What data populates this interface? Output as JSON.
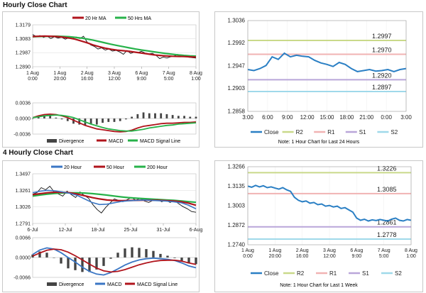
{
  "hourly": {
    "title": "Hourly Close Chart",
    "left_chart": {
      "type": "line",
      "legend": [
        "20 Hr MA",
        "50 Hrs MA"
      ],
      "yticks": [
        "1.3179",
        "1.3083",
        "1.2987",
        "1.2890"
      ],
      "ylim": [
        1.289,
        1.3179
      ],
      "xticks": [
        [
          "1 Aug",
          "0:00"
        ],
        [
          "1 Aug",
          "20:00"
        ],
        [
          "2 Aug",
          "16:00"
        ],
        [
          "3 Aug",
          "12:00"
        ],
        [
          "6 Aug",
          "9:00"
        ],
        [
          "7 Aug",
          "5:00"
        ],
        [
          "8 Aug",
          "1:00"
        ]
      ],
      "price": [
        1.3112,
        1.3098,
        1.3105,
        1.3092,
        1.31,
        1.3085,
        1.3096,
        1.3088,
        1.3093,
        1.308,
        1.309,
        1.3086,
        1.3095,
        1.3084,
        1.31,
        1.306,
        1.304,
        1.303,
        1.3012,
        1.302,
        1.3005,
        1.3012,
        1.2998,
        1.3002,
        1.2992,
        1.2975,
        1.3002,
        1.2982,
        1.299,
        1.2988,
        1.2996,
        1.2984,
        1.2978,
        1.2982,
        1.2968,
        1.2946,
        1.2956,
        1.295,
        1.2958,
        1.2964,
        1.2975,
        1.2962,
        1.296,
        1.2955,
        1.2952,
        1.295
      ],
      "ma20": [
        1.3098,
        1.31,
        1.3101,
        1.31,
        1.3098,
        1.3094,
        1.3088,
        1.308,
        1.3068,
        1.3055,
        1.304,
        1.3028,
        1.3018,
        1.301,
        1.3004,
        1.3,
        1.2996,
        1.299,
        1.2984,
        1.2978,
        1.2972,
        1.2968,
        1.2964,
        1.2962,
        1.2961,
        1.296,
        1.2958,
        1.2956
      ],
      "ma50": [
        1.3096,
        1.3098,
        1.3099,
        1.31,
        1.31,
        1.3099,
        1.3097,
        1.3093,
        1.3088,
        1.3081,
        1.3073,
        1.3064,
        1.3054,
        1.3045,
        1.3036,
        1.3028,
        1.302,
        1.3012,
        1.3005,
        1.2999,
        1.2993,
        1.2987,
        1.2981,
        1.2976,
        1.2972,
        1.2968,
        1.2965,
        1.2963
      ]
    },
    "macd": {
      "yticks": [
        "0.0036",
        "0.0000",
        "-0.0036"
      ],
      "ylim": [
        -0.0036,
        0.0036
      ],
      "legend": [
        "Divergence",
        "MACD",
        "MACD Signal Line"
      ],
      "macd": [
        0.0002,
        0.0006,
        0.0009,
        0.001,
        0.0009,
        0.0006,
        0.0002,
        -0.0004,
        -0.001,
        -0.0016,
        -0.002,
        -0.0024,
        -0.0026,
        -0.0028,
        -0.003,
        -0.0031,
        -0.003,
        -0.0027,
        -0.0022,
        -0.0018,
        -0.0016,
        -0.0014,
        -0.0012,
        -0.0011,
        -0.0011,
        -0.001,
        -0.0009,
        -0.0009,
        -0.0008
      ],
      "signal": [
        0.0002,
        0.0004,
        0.0006,
        0.0007,
        0.0008,
        0.0007,
        0.0005,
        0.0002,
        -0.0003,
        -0.0008,
        -0.0013,
        -0.0017,
        -0.0021,
        -0.0024,
        -0.0026,
        -0.0028,
        -0.0029,
        -0.0029,
        -0.0027,
        -0.0025,
        -0.0022,
        -0.002,
        -0.0018,
        -0.0016,
        -0.0015,
        -0.0013,
        -0.0012,
        -0.0011,
        -0.001
      ]
    },
    "right_chart": {
      "type": "line",
      "yticks": [
        "1.3036",
        "1.2992",
        "1.2947",
        "1.2903",
        "1.2858"
      ],
      "ylim": [
        1.2858,
        1.3036
      ],
      "xticks": [
        "3:00",
        "6:00",
        "9:00",
        "12:00",
        "15:00",
        "18:00",
        "21:00",
        "0:00",
        "3:00"
      ],
      "levels": [
        {
          "name": "R2",
          "value": 1.2997,
          "label": "1.2997",
          "color": "#c9d98a"
        },
        {
          "name": "R1",
          "value": 1.297,
          "label": "1.2970",
          "color": "#f1b3b3"
        },
        {
          "name": "S1",
          "value": 1.292,
          "label": "1.2920",
          "color": "#b9a6d9"
        },
        {
          "name": "S2",
          "value": 1.2897,
          "label": "1.2897",
          "color": "#9fd9ea"
        }
      ],
      "close": [
        1.294,
        1.2938,
        1.2942,
        1.2948,
        1.2965,
        1.296,
        1.2972,
        1.2965,
        1.2968,
        1.2966,
        1.2965,
        1.2958,
        1.2953,
        1.295,
        1.2946,
        1.2954,
        1.295,
        1.2942,
        1.2936,
        1.2938,
        1.294,
        1.2937,
        1.2938,
        1.294,
        1.2936,
        1.294,
        1.2942
      ],
      "legend": [
        "Close",
        "R2",
        "R1",
        "S1",
        "S2"
      ],
      "note": "Note: 1 Hour Chart for Last 24 Hours"
    }
  },
  "four_hourly": {
    "title": "4 Hourly Close Chart",
    "left_chart": {
      "type": "line",
      "legend": [
        "20 Hour",
        "50 Hour",
        "200 Hour"
      ],
      "yticks": [
        "1.3497",
        "1.3261",
        "1.3026",
        "1.2791"
      ],
      "ylim": [
        1.2791,
        1.3497
      ],
      "xticks": [
        "6-Jul",
        "12-Jul",
        "18-Jul",
        "25-Jul",
        "31-Jul",
        "6-Aug"
      ],
      "price": [
        1.321,
        1.323,
        1.33,
        1.327,
        1.332,
        1.324,
        1.321,
        1.318,
        1.325,
        1.32,
        1.316,
        1.324,
        1.319,
        1.315,
        1.306,
        1.299,
        1.294,
        1.302,
        1.308,
        1.314,
        1.312,
        1.31,
        1.313,
        1.316,
        1.312,
        1.315,
        1.311,
        1.309,
        1.312,
        1.314,
        1.31,
        1.312,
        1.309,
        1.312,
        1.307,
        1.303,
        1.3,
        1.296,
        1.295
      ],
      "ma20": [
        1.323,
        1.325,
        1.3262,
        1.3255,
        1.324,
        1.322,
        1.319,
        1.314,
        1.309,
        1.306,
        1.3065,
        1.3085,
        1.3105,
        1.3115,
        1.312,
        1.3125,
        1.312,
        1.3115,
        1.311,
        1.31,
        1.3085,
        1.305,
        1.3
      ],
      "ma50": [
        1.32,
        1.3215,
        1.3228,
        1.3235,
        1.3235,
        1.3228,
        1.321,
        1.3185,
        1.316,
        1.314,
        1.3125,
        1.3118,
        1.3115,
        1.3118,
        1.312,
        1.3122,
        1.3122,
        1.312,
        1.3115,
        1.311,
        1.31,
        1.308,
        1.305
      ],
      "ma200": [
        1.318,
        1.3195,
        1.3208,
        1.3218,
        1.3225,
        1.3228,
        1.3228,
        1.3224,
        1.3216,
        1.3206,
        1.3194,
        1.318,
        1.3168,
        1.3158,
        1.315,
        1.3144,
        1.3138,
        1.3132,
        1.3126,
        1.312,
        1.3112,
        1.3102,
        1.3092
      ]
    },
    "macd": {
      "yticks": [
        "0.0066",
        "0.0000",
        "-0.0066"
      ],
      "ylim": [
        -0.0066,
        0.0066
      ],
      "legend": [
        "Divergence",
        "MACD",
        "MACD Signal Line"
      ],
      "macd": [
        0.001,
        0.0025,
        0.0032,
        0.0028,
        0.0016,
        0.0,
        -0.0015,
        -0.0032,
        -0.0046,
        -0.0055,
        -0.0058,
        -0.005,
        -0.0038,
        -0.0025,
        -0.0015,
        -0.0008,
        -0.0004,
        -0.0002,
        -0.0004,
        -0.0006,
        -0.001,
        -0.0018,
        -0.0028,
        -0.0034
      ],
      "signal": [
        0.0005,
        0.0015,
        0.0024,
        0.0028,
        0.0026,
        0.0018,
        0.0006,
        -0.0008,
        -0.0022,
        -0.0035,
        -0.0044,
        -0.0048,
        -0.0046,
        -0.004,
        -0.0032,
        -0.0024,
        -0.0018,
        -0.0013,
        -0.001,
        -0.0009,
        -0.0009,
        -0.0012,
        -0.0018,
        -0.0023
      ]
    },
    "right_chart": {
      "type": "line",
      "yticks": [
        "1.3266",
        "1.3135",
        "1.3003",
        "1.2872",
        "1.2740"
      ],
      "ylim": [
        1.274,
        1.3266
      ],
      "xticks": [
        [
          "1 Aug",
          "0:00"
        ],
        [
          "1 Aug",
          "20:00"
        ],
        [
          "2 Aug",
          "16:00"
        ],
        [
          "3 Aug",
          "12:00"
        ],
        [
          "6 Aug",
          "9:00"
        ],
        [
          "7 Aug",
          "5:00"
        ],
        [
          "8 Aug",
          "1:00"
        ]
      ],
      "levels": [
        {
          "name": "R2",
          "value": 1.3226,
          "label": "1.3226",
          "color": "#c9d98a"
        },
        {
          "name": "R1",
          "value": 1.3085,
          "label": "1.3085",
          "color": "#f1b3b3"
        },
        {
          "name": "S1",
          "value": 1.2861,
          "label": "1.2861",
          "color": "#b9a6d9"
        },
        {
          "name": "S2",
          "value": 1.2778,
          "label": "1.2778",
          "color": "#9fd9ea"
        }
      ],
      "close": [
        1.3135,
        1.3128,
        1.314,
        1.313,
        1.3138,
        1.3125,
        1.313,
        1.3122,
        1.3115,
        1.3125,
        1.311,
        1.31,
        1.306,
        1.304,
        1.303,
        1.3035,
        1.302,
        1.3025,
        1.301,
        1.3015,
        1.3,
        1.3005,
        1.2995,
        1.3,
        1.2985,
        1.299,
        1.2975,
        1.296,
        1.292,
        1.2905,
        1.2912,
        1.29,
        1.2908,
        1.2903,
        1.291,
        1.2905,
        1.29,
        1.2912,
        1.292,
        1.2905,
        1.29,
        1.291,
        1.2905
      ],
      "legend": [
        "Close",
        "R2",
        "R1",
        "S1",
        "S2"
      ],
      "note": "Note: 1 Hour Chart for Last 1 Week"
    }
  },
  "colors": {
    "ma_red": "#b0141c",
    "ma_green": "#27b24a",
    "ma_blue": "#3a76c4",
    "price": "#111111",
    "close": "#2a7fc4",
    "grid": "#d9d9d9",
    "bars": "#444444"
  }
}
